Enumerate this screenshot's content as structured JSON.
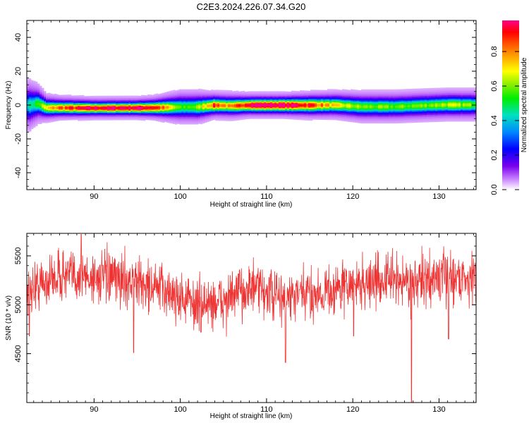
{
  "title": "C2E3.2024.226.07.34.G20",
  "chart_data": [
    {
      "type": "heatmap",
      "xlabel": "Height of straight line (km)",
      "ylabel": "Frequency (Hz)",
      "xlim": [
        82.2,
        134.3
      ],
      "ylim": [
        -50,
        50
      ],
      "xticks": [
        90,
        100,
        110,
        120,
        130
      ],
      "yticks": [
        -40,
        -20,
        0,
        20,
        40
      ],
      "colorbar": {
        "label": "Normalized spectral amplitude",
        "range": [
          0.0,
          0.98
        ],
        "ticks": [
          0.0,
          0.2,
          0.4,
          0.6,
          0.8
        ]
      },
      "ridge": [
        {
          "x": 82.5,
          "f": 0.0,
          "w": 4.5,
          "a": 0.35
        },
        {
          "x": 83.5,
          "f": 1.0,
          "w": 3.5,
          "a": 0.45
        },
        {
          "x": 84.5,
          "f": -1.5,
          "w": 2.5,
          "a": 0.6
        },
        {
          "x": 86,
          "f": -1.5,
          "w": 2.2,
          "a": 0.75
        },
        {
          "x": 90,
          "f": -1.7,
          "w": 2.0,
          "a": 0.88
        },
        {
          "x": 95,
          "f": -1.6,
          "w": 2.0,
          "a": 0.92
        },
        {
          "x": 97,
          "f": -1.5,
          "w": 2.2,
          "a": 0.85
        },
        {
          "x": 100,
          "f": -1.0,
          "w": 3.0,
          "a": 0.45
        },
        {
          "x": 102,
          "f": -1.0,
          "w": 3.0,
          "a": 0.5
        },
        {
          "x": 104,
          "f": 0.0,
          "w": 2.5,
          "a": 0.8
        },
        {
          "x": 106,
          "f": -0.3,
          "w": 2.5,
          "a": 0.65
        },
        {
          "x": 108,
          "f": 0.0,
          "w": 2.3,
          "a": 0.95
        },
        {
          "x": 112,
          "f": 0.0,
          "w": 2.3,
          "a": 0.95
        },
        {
          "x": 115,
          "f": 0.0,
          "w": 2.5,
          "a": 0.82
        },
        {
          "x": 118,
          "f": 0.2,
          "w": 2.6,
          "a": 0.6
        },
        {
          "x": 121,
          "f": -0.8,
          "w": 2.8,
          "a": 0.5
        },
        {
          "x": 125,
          "f": -0.8,
          "w": 2.8,
          "a": 0.48
        },
        {
          "x": 128,
          "f": -0.2,
          "w": 2.8,
          "a": 0.5
        },
        {
          "x": 131,
          "f": 0.3,
          "w": 2.8,
          "a": 0.55
        },
        {
          "x": 134,
          "f": 0.3,
          "w": 2.8,
          "a": 0.5
        }
      ]
    },
    {
      "type": "line",
      "xlabel": "Height of straight line (km)",
      "ylabel": "SNR (10 * v/v)",
      "xlim": [
        82.2,
        134.3
      ],
      "ylim": [
        4000,
        5730
      ],
      "xticks": [
        90,
        100,
        110,
        120,
        130
      ],
      "yticks": [
        4500,
        5000,
        5500
      ],
      "color": "#ee3333",
      "samples": 1500,
      "trend": [
        {
          "x": 82.2,
          "y": 5150
        },
        {
          "x": 86,
          "y": 5300
        },
        {
          "x": 90,
          "y": 5280
        },
        {
          "x": 94,
          "y": 5250
        },
        {
          "x": 98,
          "y": 5150
        },
        {
          "x": 102,
          "y": 5000
        },
        {
          "x": 105,
          "y": 5030
        },
        {
          "x": 108,
          "y": 5180
        },
        {
          "x": 112,
          "y": 5060
        },
        {
          "x": 116,
          "y": 5120
        },
        {
          "x": 120,
          "y": 5200
        },
        {
          "x": 124,
          "y": 5260
        },
        {
          "x": 128,
          "y": 5230
        },
        {
          "x": 131,
          "y": 5300
        },
        {
          "x": 134.3,
          "y": 5260
        }
      ],
      "spikes": [
        {
          "x": 82.5,
          "y": 4680
        },
        {
          "x": 88.5,
          "y": 5720
        },
        {
          "x": 94.6,
          "y": 4510
        },
        {
          "x": 102.4,
          "y": 4720
        },
        {
          "x": 112.2,
          "y": 4410
        },
        {
          "x": 120.1,
          "y": 4680
        },
        {
          "x": 126.8,
          "y": 4000
        },
        {
          "x": 131.1,
          "y": 4650
        }
      ]
    }
  ]
}
